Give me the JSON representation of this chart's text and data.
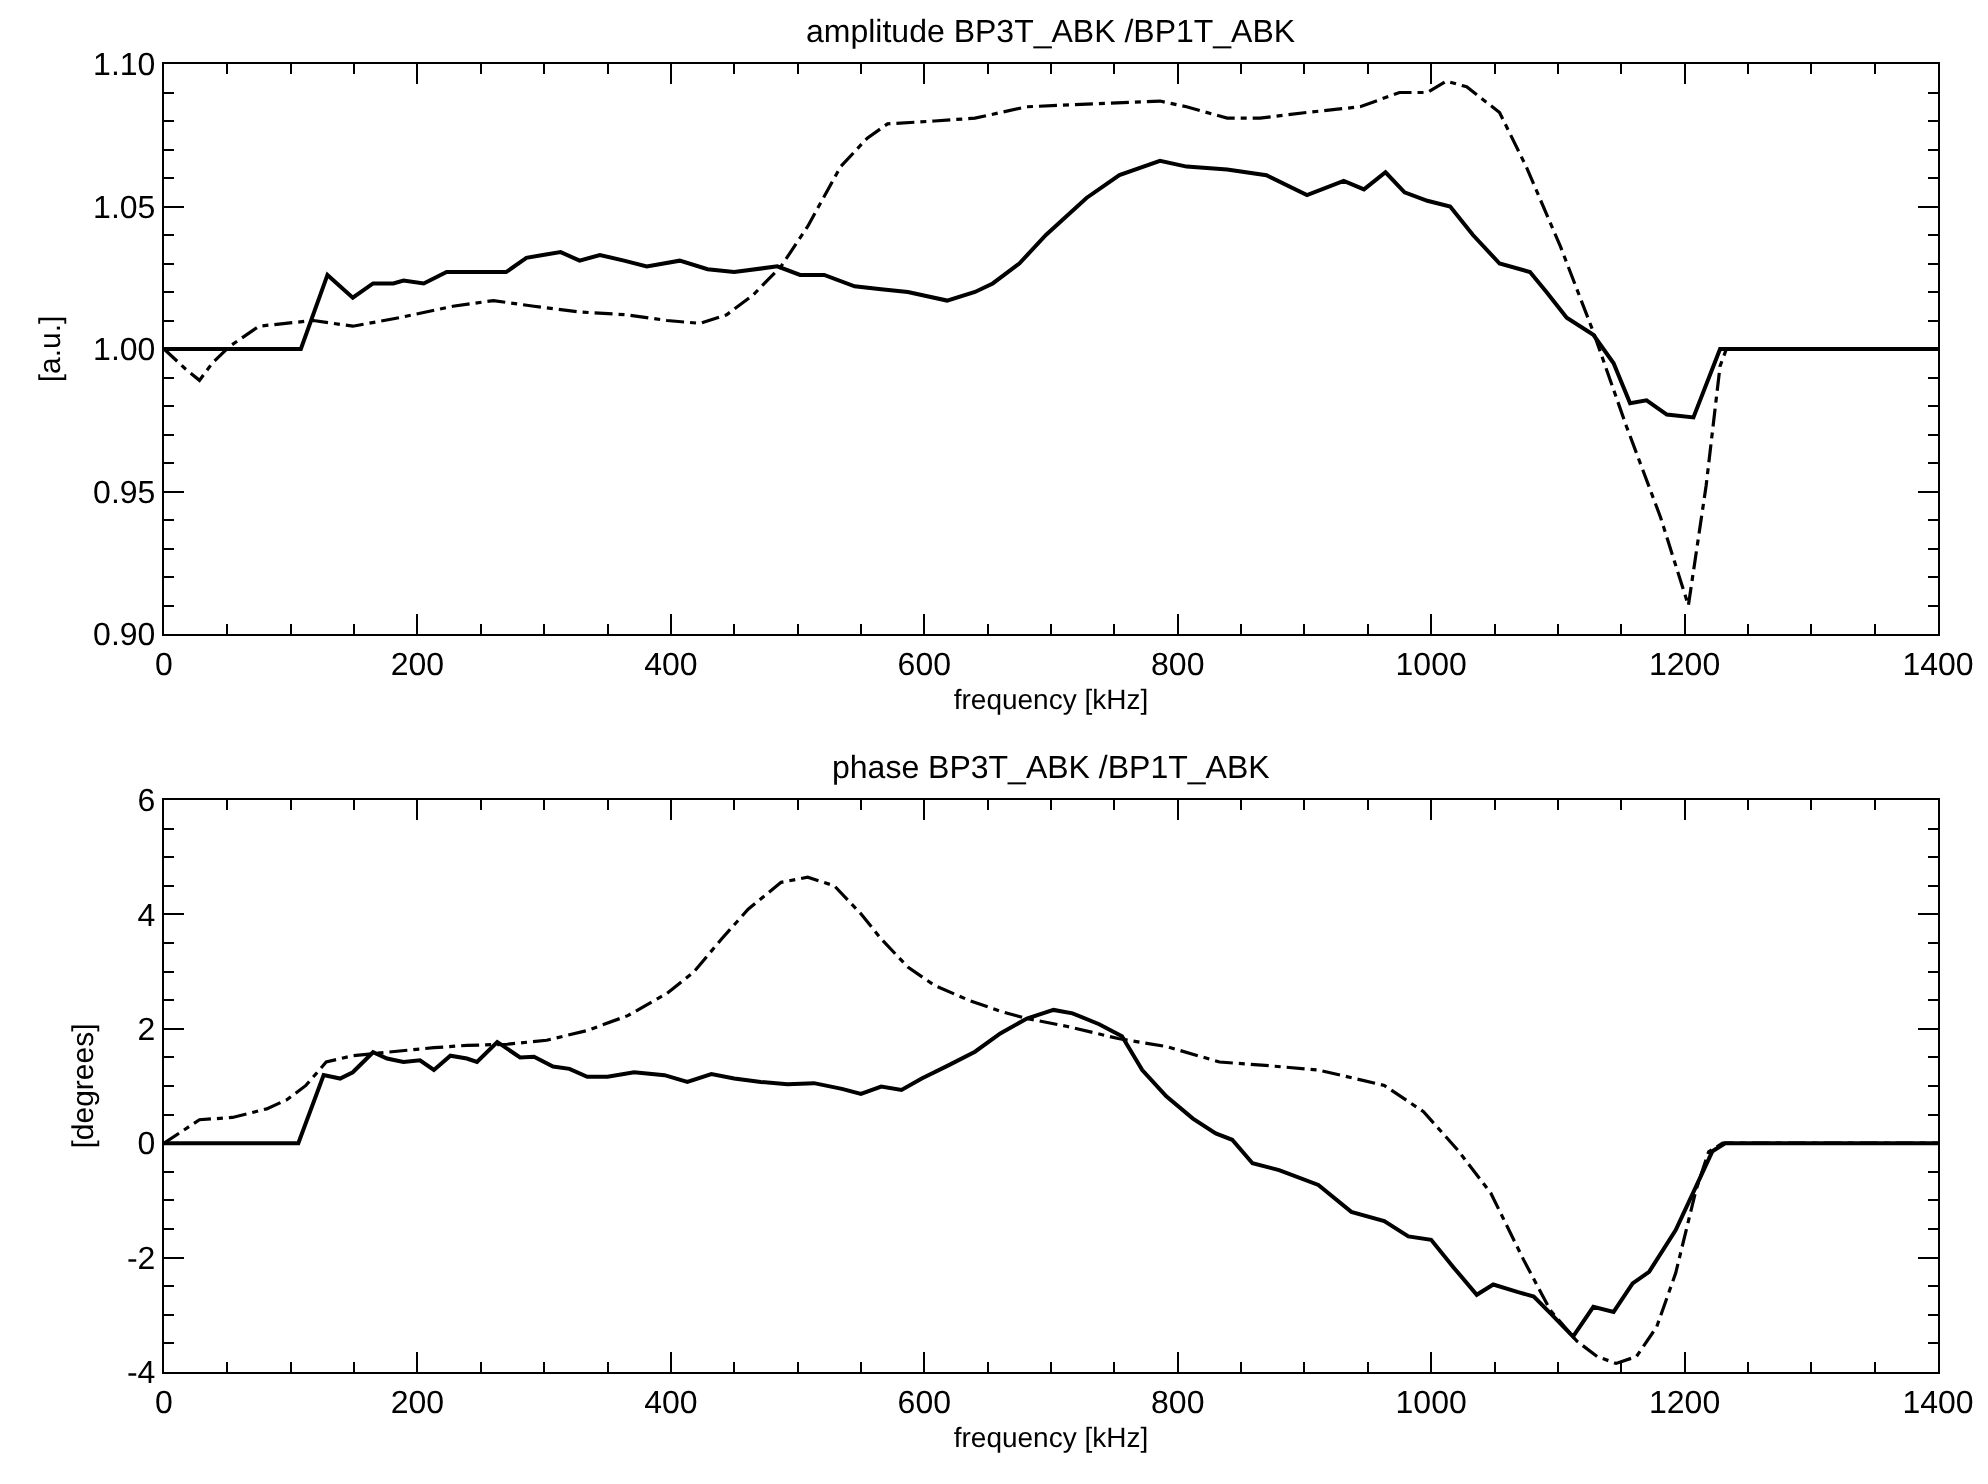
{
  "chart_data": [
    {
      "type": "line",
      "title": "amplitude BP3T_ABK /BP1T_ABK",
      "xlabel": "frequency [kHz]",
      "ylabel": "[a.u.]",
      "xlim": [
        0,
        1400
      ],
      "ylim": [
        0.9,
        1.1
      ],
      "xticks": [
        0,
        {
          "value": 50,
          "label": null
        },
        {
          "value": 100,
          "label": null
        },
        {
          "value": 150,
          "label": null
        },
        200,
        {
          "value": 250,
          "label": null
        },
        {
          "value": 300,
          "label": null
        },
        {
          "value": 350,
          "label": null
        },
        400,
        {
          "value": 450,
          "label": null
        },
        {
          "value": 500,
          "label": null
        },
        {
          "value": 550,
          "label": null
        },
        600,
        {
          "value": 650,
          "label": null
        },
        {
          "value": 700,
          "label": null
        },
        {
          "value": 750,
          "label": null
        },
        800,
        {
          "value": 850,
          "label": null
        },
        {
          "value": 900,
          "label": null
        },
        {
          "value": 950,
          "label": null
        },
        1000,
        {
          "value": 1050,
          "label": null
        },
        {
          "value": 1100,
          "label": null
        },
        {
          "value": 1150,
          "label": null
        },
        1200,
        {
          "value": 1250,
          "label": null
        },
        {
          "value": 1300,
          "label": null
        },
        {
          "value": 1350,
          "label": null
        },
        1400
      ],
      "yticks": [
        {
          "value": 0.9,
          "label": "0.90"
        },
        {
          "value": 0.91,
          "label": null
        },
        {
          "value": 0.92,
          "label": null
        },
        {
          "value": 0.93,
          "label": null
        },
        {
          "value": 0.94,
          "label": null
        },
        0.95,
        {
          "value": 0.96,
          "label": null
        },
        {
          "value": 0.97,
          "label": null
        },
        {
          "value": 0.98,
          "label": null
        },
        {
          "value": 0.99,
          "label": null
        },
        {
          "value": 1.0,
          "label": "1.00"
        },
        {
          "value": 1.01,
          "label": null
        },
        {
          "value": 1.02,
          "label": null
        },
        {
          "value": 1.03,
          "label": null
        },
        {
          "value": 1.04,
          "label": null
        },
        1.05,
        {
          "value": 1.06,
          "label": null
        },
        {
          "value": 1.07,
          "label": null
        },
        {
          "value": 1.08,
          "label": null
        },
        {
          "value": 1.09,
          "label": null
        },
        {
          "value": 1.1,
          "label": "1.10"
        }
      ],
      "series": [
        {
          "color": "#000000",
          "line_style": "solid",
          "x": [
            0,
            108,
            129,
            149,
            165,
            181,
            189,
            205,
            223,
            239,
            255,
            270,
            286,
            299,
            313,
            328,
            344,
            363,
            381,
            407,
            429,
            450,
            484,
            502,
            521,
            545,
            566,
            587,
            618,
            640,
            654,
            675,
            696,
            728,
            754,
            786,
            807,
            839,
            870,
            902,
            931,
            947,
            964,
            979,
            997,
            1015,
            1033,
            1054,
            1078,
            1091,
            1107,
            1128,
            1144,
            1157,
            1170,
            1186,
            1207,
            1228,
            1400
          ],
          "values": [
            1.0,
            1.0,
            1.026,
            1.018,
            1.023,
            1.023,
            1.024,
            1.023,
            1.027,
            1.027,
            1.027,
            1.027,
            1.032,
            1.033,
            1.034,
            1.031,
            1.033,
            1.031,
            1.029,
            1.031,
            1.028,
            1.027,
            1.029,
            1.026,
            1.026,
            1.022,
            1.021,
            1.02,
            1.017,
            1.02,
            1.023,
            1.03,
            1.04,
            1.053,
            1.061,
            1.066,
            1.064,
            1.063,
            1.061,
            1.054,
            1.059,
            1.056,
            1.062,
            1.055,
            1.052,
            1.05,
            1.04,
            1.03,
            1.027,
            1.02,
            1.011,
            1.005,
            0.995,
            0.981,
            0.982,
            0.977,
            0.976,
            1.0,
            1.0
          ]
        },
        {
          "color": "#000000",
          "line_style": "dashdot",
          "x": [
            0,
            17,
            28,
            38,
            52,
            75,
            96,
            118,
            149,
            186,
            228,
            260,
            292,
            328,
            365,
            397,
            423,
            444,
            465,
            487,
            508,
            534,
            555,
            571,
            608,
            640,
            681,
            733,
            786,
            807,
            839,
            865,
            902,
            944,
            975,
            997,
            1012,
            1028,
            1054,
            1075,
            1102,
            1128,
            1154,
            1181,
            1203,
            1217,
            1228,
            1233,
            1400
          ],
          "values": [
            1.0,
            0.993,
            0.989,
            0.995,
            1.001,
            1.008,
            1.009,
            1.01,
            1.008,
            1.011,
            1.015,
            1.017,
            1.015,
            1.013,
            1.012,
            1.01,
            1.009,
            1.012,
            1.019,
            1.029,
            1.043,
            1.064,
            1.074,
            1.079,
            1.08,
            1.081,
            1.085,
            1.086,
            1.087,
            1.085,
            1.081,
            1.081,
            1.083,
            1.085,
            1.09,
            1.09,
            1.094,
            1.092,
            1.083,
            1.064,
            1.036,
            1.006,
            0.973,
            0.941,
            0.91,
            0.952,
            0.994,
            1.0,
            1.0
          ]
        }
      ]
    },
    {
      "type": "line",
      "title": "phase BP3T_ABK /BP1T_ABK",
      "xlabel": "frequency [kHz]",
      "ylabel": "[degrees]",
      "xlim": [
        0,
        1400
      ],
      "ylim": [
        -4,
        6
      ],
      "xticks": [
        0,
        {
          "value": 50,
          "label": null
        },
        {
          "value": 100,
          "label": null
        },
        {
          "value": 150,
          "label": null
        },
        200,
        {
          "value": 250,
          "label": null
        },
        {
          "value": 300,
          "label": null
        },
        {
          "value": 350,
          "label": null
        },
        400,
        {
          "value": 450,
          "label": null
        },
        {
          "value": 500,
          "label": null
        },
        {
          "value": 550,
          "label": null
        },
        600,
        {
          "value": 650,
          "label": null
        },
        {
          "value": 700,
          "label": null
        },
        {
          "value": 750,
          "label": null
        },
        800,
        {
          "value": 850,
          "label": null
        },
        {
          "value": 900,
          "label": null
        },
        {
          "value": 950,
          "label": null
        },
        1000,
        {
          "value": 1050,
          "label": null
        },
        {
          "value": 1100,
          "label": null
        },
        {
          "value": 1150,
          "label": null
        },
        1200,
        {
          "value": 1250,
          "label": null
        },
        {
          "value": 1300,
          "label": null
        },
        {
          "value": 1350,
          "label": null
        },
        1400
      ],
      "yticks": [
        -4,
        {
          "value": -3.5,
          "label": null
        },
        {
          "value": -3,
          "label": null
        },
        {
          "value": -2.5,
          "label": null
        },
        -2,
        {
          "value": -1.5,
          "label": null
        },
        {
          "value": -1,
          "label": null
        },
        {
          "value": -0.5,
          "label": null
        },
        0,
        {
          "value": 0.5,
          "label": null
        },
        {
          "value": 1,
          "label": null
        },
        {
          "value": 1.5,
          "label": null
        },
        2,
        {
          "value": 2.5,
          "label": null
        },
        {
          "value": 3,
          "label": null
        },
        {
          "value": 3.5,
          "label": null
        },
        4,
        {
          "value": 4.5,
          "label": null
        },
        {
          "value": 5,
          "label": null
        },
        {
          "value": 5.5,
          "label": null
        },
        6
      ],
      "series": [
        {
          "color": "#000000",
          "line_style": "solid",
          "x": [
            0,
            106,
            126,
            139,
            149,
            165,
            176,
            189,
            202,
            213,
            226,
            239,
            247,
            263,
            281,
            292,
            307,
            320,
            334,
            350,
            371,
            395,
            413,
            432,
            450,
            471,
            492,
            513,
            535,
            550,
            566,
            582,
            598,
            619,
            640,
            660,
            681,
            702,
            717,
            738,
            756,
            772,
            791,
            812,
            830,
            843,
            859,
            880,
            911,
            937,
            963,
            982,
            1000,
            1018,
            1036,
            1049,
            1068,
            1081,
            1094,
            1112,
            1128,
            1144,
            1159,
            1172,
            1193,
            1209,
            1222,
            1232,
            1400
          ],
          "values": [
            0,
            0,
            1.19,
            1.13,
            1.24,
            1.59,
            1.48,
            1.42,
            1.45,
            1.28,
            1.53,
            1.48,
            1.42,
            1.77,
            1.5,
            1.51,
            1.34,
            1.3,
            1.16,
            1.16,
            1.24,
            1.19,
            1.07,
            1.21,
            1.13,
            1.07,
            1.03,
            1.05,
            0.95,
            0.86,
            0.99,
            0.93,
            1.13,
            1.36,
            1.6,
            1.92,
            2.18,
            2.33,
            2.27,
            2.08,
            1.87,
            1.28,
            0.82,
            0.43,
            0.17,
            0.06,
            -0.35,
            -0.47,
            -0.73,
            -1.2,
            -1.36,
            -1.63,
            -1.69,
            -2.18,
            -2.65,
            -2.47,
            -2.6,
            -2.68,
            -2.97,
            -3.38,
            -2.86,
            -2.95,
            -2.45,
            -2.25,
            -1.52,
            -0.76,
            -0.14,
            0,
            0
          ]
        },
        {
          "color": "#000000",
          "line_style": "dashdot",
          "x": [
            0,
            28,
            54,
            81,
            97,
            112,
            128,
            149,
            176,
            213,
            239,
            271,
            302,
            334,
            366,
            397,
            418,
            440,
            461,
            487,
            508,
            529,
            550,
            566,
            587,
            608,
            635,
            661,
            681,
            713,
            753,
            791,
            833,
            869,
            911,
            963,
            994,
            1021,
            1047,
            1073,
            1094,
            1115,
            1131,
            1146,
            1162,
            1178,
            1193,
            1209,
            1219,
            1230,
            1400
          ],
          "values": [
            0,
            0.41,
            0.45,
            0.6,
            0.76,
            1.01,
            1.42,
            1.53,
            1.59,
            1.67,
            1.71,
            1.73,
            1.8,
            1.97,
            2.23,
            2.62,
            2.99,
            3.57,
            4.09,
            4.56,
            4.65,
            4.5,
            4.01,
            3.57,
            3.08,
            2.76,
            2.5,
            2.3,
            2.18,
            2.04,
            1.83,
            1.69,
            1.42,
            1.36,
            1.28,
            1.01,
            0.55,
            -0.12,
            -0.87,
            -2.04,
            -2.92,
            -3.46,
            -3.73,
            -3.85,
            -3.73,
            -3.21,
            -2.27,
            -0.82,
            -0.15,
            0,
            0
          ]
        }
      ]
    }
  ]
}
